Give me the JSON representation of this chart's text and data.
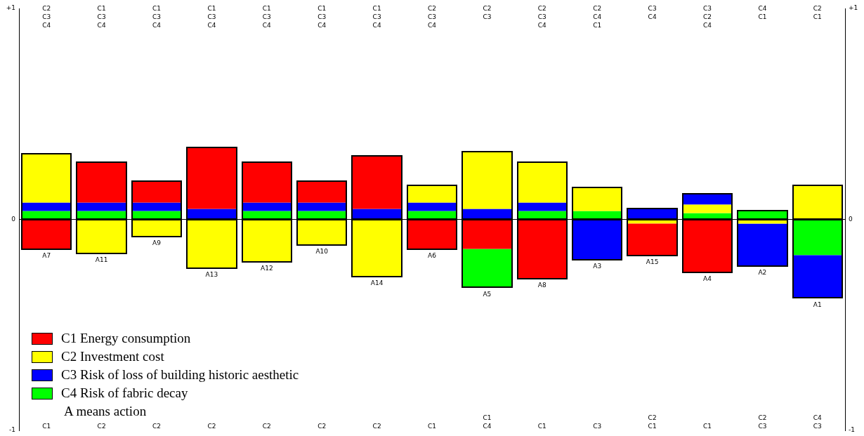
{
  "chart_data": {
    "type": "bar",
    "categories": [
      "A7",
      "A11",
      "A9",
      "A13",
      "A12",
      "A10",
      "A14",
      "A6",
      "A5",
      "A8",
      "A3",
      "A15",
      "A4",
      "A2",
      "A1"
    ],
    "series": [
      {
        "name": "C1 Energy consumption",
        "color": "#ff0000",
        "values": [
          -0.14,
          0.19,
          0.1,
          0.29,
          0.19,
          0.1,
          0.25,
          -0.14,
          -0.14,
          -0.28,
          null,
          -0.15,
          -0.25,
          null,
          null
        ],
        "base": [
          0,
          0.08,
          0.08,
          0.05,
          0.08,
          0.08,
          0.05,
          0,
          0,
          0,
          null,
          -0.02,
          0,
          null,
          null
        ]
      },
      {
        "name": "C2 Investment cost",
        "color": "#ffff00",
        "values": [
          0.23,
          -0.16,
          -0.08,
          -0.23,
          -0.2,
          -0.12,
          -0.27,
          0.08,
          0.27,
          0.19,
          0.11,
          -0.02,
          0.04,
          -0.02,
          0.16
        ],
        "base": [
          0.08,
          0,
          0,
          0,
          0,
          0,
          0,
          0.08,
          0.05,
          0.08,
          0.04,
          0,
          0.03,
          0,
          0
        ]
      },
      {
        "name": "C3 Risk of loss of building historic aesthetic",
        "color": "#0000ff",
        "values": [
          0.04,
          0.04,
          0.04,
          0.05,
          0.04,
          0.04,
          0.05,
          0.04,
          0.05,
          0.04,
          -0.19,
          0.05,
          0.05,
          -0.2,
          -0.2
        ],
        "base": [
          0.04,
          0.04,
          0.04,
          0,
          0.04,
          0.04,
          0,
          0.04,
          0,
          0.04,
          0,
          0,
          0.07,
          -0.02,
          -0.17
        ]
      },
      {
        "name": "C4 Risk of fabric decay",
        "color": "#00ff00",
        "values": [
          0.04,
          0.04,
          0.04,
          null,
          0.04,
          0.04,
          null,
          0.04,
          -0.18,
          0.04,
          0.04,
          null,
          0.03,
          0.04,
          -0.17
        ],
        "base": [
          0,
          0,
          0,
          null,
          0,
          0,
          null,
          0,
          -0.14,
          0,
          0,
          null,
          0,
          0,
          0
        ]
      }
    ],
    "ylim": [
      -1,
      1
    ],
    "yticks": [
      {
        "value": -1,
        "label": "-1"
      },
      0,
      {
        "value": 1,
        "label": "+1"
      }
    ],
    "y2lim": [
      -1,
      1
    ],
    "y2ticks": [
      {
        "value": -1,
        "label": "-1"
      },
      0,
      {
        "value": 1,
        "label": "+1"
      }
    ],
    "ref_lines": [
      {
        "axis": "y",
        "value": 0
      }
    ],
    "legend": "bottom left",
    "annotations": [
      "C2\nC3\nC4",
      "C1\nC3\nC4",
      "C1\nC3\nC4",
      "C1\nC3\nC4",
      "C1\nC3\nC4",
      "C1\nC3\nC4",
      "C1\nC3\nC4",
      "C2\nC3\nC4",
      "C2\nC3",
      "C2\nC3\nC4",
      "C2\nC4\nC1",
      "C3\nC4",
      "C3\nC2\nC4",
      "C4\nC1",
      "C2\nC1",
      "C1",
      "C2",
      "C2",
      "C2",
      "C2",
      "C2",
      "C2",
      "C1",
      "C1\nC4",
      "C1",
      "C3",
      "C2\nC1",
      "C1",
      "C2\nC3",
      "C4\nC3",
      "A means action"
    ]
  }
}
